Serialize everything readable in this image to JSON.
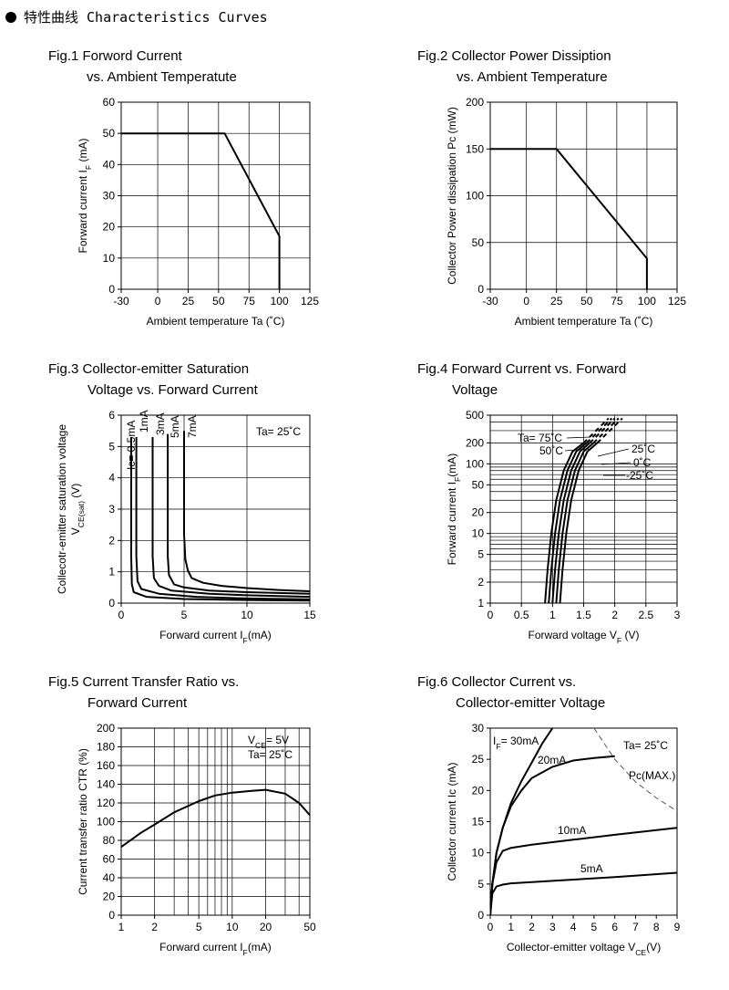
{
  "heading": "特性曲线 Characteristics Curves",
  "colors": {
    "curve": "#000000",
    "grid": "#000000",
    "dashed": "#555555"
  },
  "figures": [
    {
      "title_line1": "Fig.1 Forword Current",
      "title_line2": "vs. Ambient Temperatute"
    },
    {
      "title_line1": "Fig.2 Collector Power Dissiption",
      "title_line2": "vs. Ambient Temperature"
    },
    {
      "title_line1": "Fig.3 Collector-emitter Saturation",
      "title_line2": "Voltage vs. Forward Current"
    },
    {
      "title_line1": "Fig.4 Forward Current vs. Forward",
      "title_line2": "Voltage"
    },
    {
      "title_line1": "Fig.5 Current Transfer Ratio vs.",
      "title_line2": "Forward Current"
    },
    {
      "title_line1": "Fig.6 Collector Current vs.",
      "title_line2": "Collector-emitter Voltage"
    }
  ],
  "chart_data": [
    {
      "type": "line",
      "xlabel": "Ambient temperature Ta (˚C)",
      "ylabel": "Forward current I_F (mA)",
      "xlim": [
        -30,
        125
      ],
      "ylim": [
        0,
        60
      ],
      "xticks": [
        -30,
        0,
        25,
        50,
        75,
        100,
        125
      ],
      "yticks": [
        0,
        10,
        20,
        30,
        40,
        50,
        60
      ],
      "grid": true,
      "series": [
        {
          "x": [
            -30,
            55,
            100,
            100
          ],
          "y": [
            50,
            50,
            17,
            0
          ]
        }
      ]
    },
    {
      "type": "line",
      "xlabel": "Ambient temperature Ta (˚C)",
      "ylabel": "Collector Power dissipation Pc (mW)",
      "xlim": [
        -30,
        125
      ],
      "ylim": [
        0,
        200
      ],
      "xticks": [
        -30,
        0,
        25,
        50,
        75,
        100,
        125
      ],
      "yticks": [
        0,
        50,
        100,
        150,
        200
      ],
      "grid": true,
      "series": [
        {
          "x": [
            -30,
            25,
            100,
            100
          ],
          "y": [
            150,
            150,
            33,
            0
          ]
        }
      ]
    },
    {
      "type": "line",
      "xlabel": "Forward current I_F(mA)",
      "ylabel": "Collecotr-emitter saturation voltage V_CE(sat) (V)",
      "xlim": [
        0,
        15
      ],
      "ylim": [
        0,
        6
      ],
      "xticks": [
        0,
        5,
        10,
        15
      ],
      "yticks": [
        0,
        1,
        2,
        3,
        4,
        5,
        6
      ],
      "grid": true,
      "annotation": "Ta= 25˚C",
      "series": [
        {
          "name": "Ic= 0.5mA",
          "x": [
            0.8,
            0.8,
            0.85,
            1.0,
            2,
            5,
            10,
            15
          ],
          "y": [
            5.3,
            1.5,
            0.6,
            0.35,
            0.2,
            0.13,
            0.1,
            0.08
          ]
        },
        {
          "name": "1mA",
          "x": [
            1.2,
            1.2,
            1.3,
            1.6,
            3,
            6,
            10,
            15
          ],
          "y": [
            5.3,
            1.5,
            0.7,
            0.45,
            0.3,
            0.2,
            0.15,
            0.12
          ]
        },
        {
          "name": "3mA",
          "x": [
            2.5,
            2.5,
            2.6,
            3.0,
            4,
            7,
            10,
            15
          ],
          "y": [
            5.3,
            1.5,
            0.8,
            0.55,
            0.4,
            0.3,
            0.25,
            0.2
          ]
        },
        {
          "name": "5mA",
          "x": [
            3.7,
            3.7,
            3.8,
            4.2,
            5,
            7,
            10,
            15
          ],
          "y": [
            5.4,
            1.5,
            0.9,
            0.6,
            0.5,
            0.4,
            0.35,
            0.3
          ]
        },
        {
          "name": "7mA",
          "x": [
            5.0,
            5.0,
            5.1,
            5.3,
            5.6,
            6.5,
            8,
            10,
            12.5,
            15
          ],
          "y": [
            5.5,
            2.2,
            1.4,
            1.05,
            0.8,
            0.65,
            0.55,
            0.48,
            0.42,
            0.38
          ]
        }
      ]
    },
    {
      "type": "line",
      "xlabel": "Forward voltage V_F (V)",
      "ylabel": "Forward current I_F(mA)",
      "xlim": [
        0,
        3.0
      ],
      "ylim": [
        1,
        500
      ],
      "yscale": "log",
      "xticks": [
        0,
        0.5,
        1.0,
        1.5,
        2.0,
        2.5,
        3.0
      ],
      "yticks": [
        1,
        2,
        5,
        10,
        20,
        50,
        100,
        200,
        500
      ],
      "grid": true,
      "series": [
        {
          "name": "Ta= 75˚C",
          "x": [
            0.88,
            0.92,
            0.98,
            1.06,
            1.18,
            1.32,
            1.5
          ],
          "y": [
            1,
            3,
            10,
            30,
            80,
            150,
            200
          ]
        },
        {
          "name": "50˚C",
          "x": [
            0.94,
            0.98,
            1.04,
            1.12,
            1.24,
            1.38,
            1.55
          ],
          "y": [
            1,
            3,
            10,
            30,
            80,
            150,
            200
          ]
        },
        {
          "name": "25˚C",
          "x": [
            1.0,
            1.04,
            1.1,
            1.18,
            1.3,
            1.44,
            1.6
          ],
          "y": [
            1,
            3,
            10,
            30,
            80,
            150,
            200
          ]
        },
        {
          "name": "0˚C",
          "x": [
            1.06,
            1.1,
            1.16,
            1.24,
            1.36,
            1.5,
            1.66
          ],
          "y": [
            1,
            3,
            10,
            30,
            80,
            150,
            200
          ]
        },
        {
          "name": "-25˚C",
          "x": [
            1.12,
            1.16,
            1.22,
            1.3,
            1.42,
            1.56,
            1.72
          ],
          "y": [
            1,
            3,
            10,
            30,
            80,
            150,
            200
          ]
        }
      ],
      "dashed_series": [
        {
          "x": [
            1.5,
            1.9
          ],
          "y": [
            200,
            450
          ]
        },
        {
          "x": [
            1.55,
            1.95
          ],
          "y": [
            200,
            450
          ]
        },
        {
          "x": [
            1.6,
            2.0
          ],
          "y": [
            200,
            450
          ]
        },
        {
          "x": [
            1.66,
            2.06
          ],
          "y": [
            200,
            450
          ]
        },
        {
          "x": [
            1.72,
            2.12
          ],
          "y": [
            200,
            450
          ]
        }
      ]
    },
    {
      "type": "line",
      "xlabel": "Forward current I_F(mA)",
      "ylabel": "Current transfer ratio CTR (%)",
      "xlim": [
        1,
        50
      ],
      "xscale": "log",
      "ylim": [
        0,
        200
      ],
      "xticks": [
        1,
        2,
        5,
        10,
        20,
        50
      ],
      "yticks": [
        0,
        20,
        40,
        60,
        80,
        100,
        120,
        140,
        160,
        180,
        200
      ],
      "grid": true,
      "annotation_lines": [
        "V_CE= 5V",
        "Ta= 25˚C"
      ],
      "series": [
        {
          "x": [
            1,
            1.5,
            2,
            3,
            5,
            7,
            10,
            15,
            20,
            30,
            40,
            50
          ],
          "y": [
            73,
            88,
            97,
            110,
            122,
            128,
            131,
            133,
            134,
            130,
            120,
            107
          ]
        }
      ]
    },
    {
      "type": "line",
      "xlabel": "Collector-emitter voltage V_CE(V)",
      "ylabel": "Collector current Ic (mA)",
      "xlim": [
        0,
        9
      ],
      "ylim": [
        0,
        30
      ],
      "xticks": [
        0,
        1,
        2,
        3,
        4,
        5,
        6,
        7,
        8,
        9
      ],
      "yticks": [
        0,
        5,
        10,
        15,
        20,
        25,
        30
      ],
      "grid": false,
      "annotation": "Ta= 25˚C",
      "series": [
        {
          "name": "I_F= 30mA",
          "x": [
            0,
            0.1,
            0.3,
            0.6,
            1,
            1.5,
            2,
            2.5,
            3.0
          ],
          "y": [
            0,
            5,
            10,
            14,
            18,
            21.5,
            24.5,
            27.5,
            30
          ]
        },
        {
          "name": "20mA",
          "x": [
            0,
            0.1,
            0.3,
            0.6,
            1,
            1.5,
            2,
            3,
            4,
            5,
            6
          ],
          "y": [
            0,
            5,
            10,
            14,
            17.5,
            20,
            22,
            23.8,
            24.8,
            25.2,
            25.5
          ]
        },
        {
          "name": "10mA",
          "x": [
            0,
            0.1,
            0.3,
            0.6,
            1,
            2,
            4,
            6,
            9
          ],
          "y": [
            0,
            5,
            8.5,
            10.3,
            10.8,
            11.3,
            12.1,
            12.9,
            14
          ]
        },
        {
          "name": "5mA",
          "x": [
            0,
            0.1,
            0.3,
            0.6,
            1,
            3,
            6,
            9
          ],
          "y": [
            0,
            3.5,
            4.6,
            4.9,
            5.1,
            5.5,
            6.1,
            6.8
          ]
        }
      ],
      "dashed_series": [
        {
          "name": "Pc(MAX.)",
          "x": [
            5.0,
            6,
            7,
            8,
            9
          ],
          "y": [
            30,
            25,
            21.4,
            18.8,
            16.7
          ]
        }
      ]
    }
  ]
}
